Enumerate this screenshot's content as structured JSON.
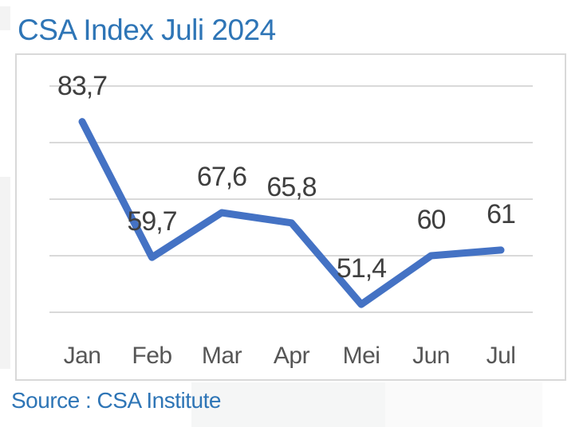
{
  "title": {
    "text": "CSA Index Juli 2024",
    "color": "#2e75b6"
  },
  "source": {
    "text": "Source : CSA Institute",
    "color": "#2e75b6"
  },
  "chart_data": {
    "type": "line",
    "title": "CSA Index Juli 2024",
    "categories": [
      "Jan",
      "Feb",
      "Mar",
      "Apr",
      "Mei",
      "Jun",
      "Jul"
    ],
    "series": [
      {
        "name": "CSA Index",
        "values": [
          83.7,
          59.7,
          67.6,
          65.8,
          51.4,
          60,
          61
        ],
        "labels": [
          "83,7",
          "59,7",
          "67,6",
          "65,8",
          "51,4",
          "60",
          "61"
        ],
        "color": "#4472c4"
      }
    ],
    "xlabel": "",
    "ylabel": "",
    "ylim": [
      50,
      90
    ],
    "gridline_step": 10,
    "grid": true,
    "gridline_color": "#d9d9d9",
    "legend_position": "none",
    "data_label_color": "#3f3f3f",
    "axis_label_color": "#565656",
    "panel_border_color": "#d9d9d9"
  }
}
